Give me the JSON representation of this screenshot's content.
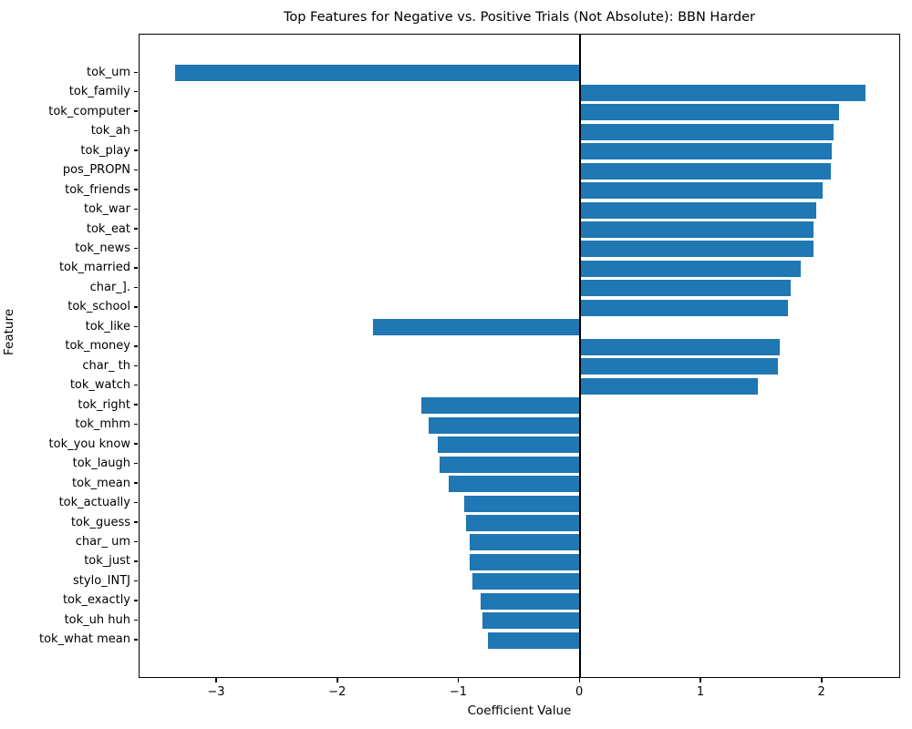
{
  "chart_data": {
    "type": "bar",
    "orientation": "horizontal",
    "title": "Top Features for Negative vs. Positive Trials (Not Absolute): BBN Harder",
    "xlabel": "Coefficient Value",
    "ylabel": "Feature",
    "categories": [
      "tok_um",
      "tok_family",
      "tok_computer",
      "tok_ah",
      "tok_play",
      "pos_PROPN",
      "tok_friends",
      "tok_war",
      "tok_eat",
      "tok_news",
      "tok_married",
      "char_].",
      "tok_school",
      "tok_like",
      "tok_money",
      "char_ th",
      "tok_watch",
      "tok_right",
      "tok_mhm",
      "tok_you know",
      "tok_laugh",
      "tok_mean",
      "tok_actually",
      "tok_guess",
      "char_ um",
      "tok_just",
      "stylo_INTJ",
      "tok_exactly",
      "tok_uh huh",
      "tok_what mean"
    ],
    "values": [
      -3.35,
      2.36,
      2.14,
      2.09,
      2.08,
      2.07,
      2.0,
      1.95,
      1.93,
      1.93,
      1.82,
      1.74,
      1.72,
      -1.71,
      1.65,
      1.63,
      1.47,
      -1.31,
      -1.25,
      -1.18,
      -1.16,
      -1.09,
      -0.96,
      -0.94,
      -0.91,
      -0.91,
      -0.89,
      -0.82,
      -0.81,
      -0.76
    ],
    "xlim": [
      -3.64,
      2.65
    ],
    "xticks": [
      -3,
      -2,
      -1,
      0,
      1,
      2
    ],
    "bar_color": "#1f77b4",
    "grid": false,
    "zero_line": true,
    "legend": null
  }
}
